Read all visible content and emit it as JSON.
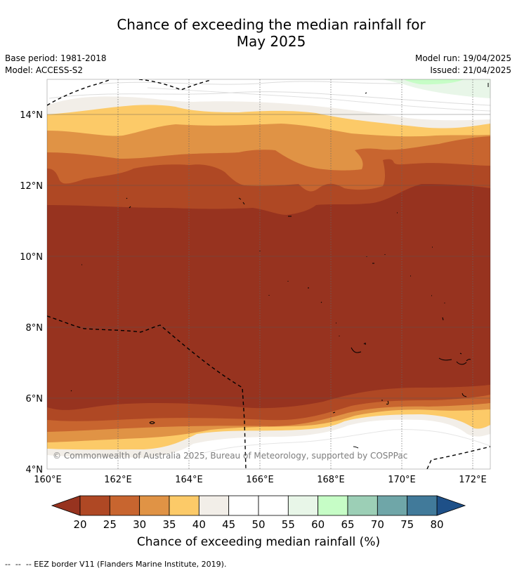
{
  "title": {
    "line1": "Chance of exceeding the median rainfall for",
    "line2": "May 2025"
  },
  "meta": {
    "base_period": "Base period: 1981-2018",
    "model": "Model: ACCESS-S2",
    "model_run": "Model run: 19/04/2025",
    "issued": "Issued: 21/04/2025"
  },
  "map": {
    "lat_ticks": [
      {
        "value": 14,
        "label": "14°N"
      },
      {
        "value": 12,
        "label": "12°N"
      },
      {
        "value": 10,
        "label": "10°N"
      },
      {
        "value": 8,
        "label": "8°N"
      },
      {
        "value": 6,
        "label": "6°N"
      },
      {
        "value": 4,
        "label": "4°N"
      }
    ],
    "lon_ticks": [
      {
        "value": 160,
        "label": "160°E"
      },
      {
        "value": 162,
        "label": "162°E"
      },
      {
        "value": 164,
        "label": "164°E"
      },
      {
        "value": 166,
        "label": "166°E"
      },
      {
        "value": 168,
        "label": "168°E"
      },
      {
        "value": 170,
        "label": "170°E"
      },
      {
        "value": 172,
        "label": "172°E"
      }
    ],
    "lat_range": [
      4,
      15.1
    ],
    "lon_range": [
      160,
      172.5
    ],
    "copyright": "© Commonwealth of Australia 2025, Bureau of Meteorology, supported by COSPPac"
  },
  "colorbar": {
    "ticks": [
      "20",
      "25",
      "30",
      "35",
      "40",
      "45",
      "50",
      "55",
      "60",
      "65",
      "70",
      "75",
      "80"
    ],
    "colors": [
      "#af4824",
      "#c8652f",
      "#e09345",
      "#fcca68",
      "#f2eee8",
      "#ffffff",
      "#ffffff",
      "#e8f6e8",
      "#c6fdc6",
      "#9ccfb6",
      "#6fa6a8",
      "#417a9a"
    ],
    "under_color": "#97331f",
    "over_color": "#1e5088",
    "label": "Chance of exceeding median rainfall (%)"
  },
  "footer": "--  --  -- EEZ border V11 (Flanders Marine Institute, 2019)."
}
